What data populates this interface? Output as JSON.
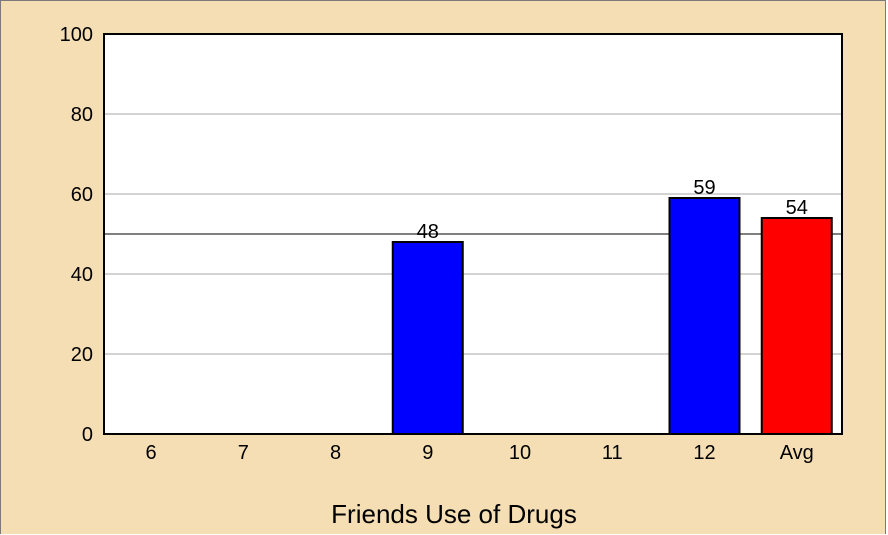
{
  "chart_data": {
    "type": "bar",
    "title": "",
    "xlabel": "Friends Use of Drugs",
    "ylabel": "",
    "categories": [
      "6",
      "7",
      "8",
      "9",
      "10",
      "11",
      "12",
      "Avg"
    ],
    "values": [
      null,
      null,
      null,
      48,
      null,
      null,
      59,
      54
    ],
    "data_labels": [
      "",
      "",
      "",
      "48",
      "",
      "",
      "59",
      "54"
    ],
    "y_ticks": [
      "0",
      "20",
      "40",
      "60",
      "80",
      "100"
    ],
    "ylim": [
      0,
      100
    ],
    "reference_line": 50,
    "grid": true,
    "colors": {
      "background": "#f5deb3",
      "plot_area": "#ffffff",
      "bar": "#0000ff",
      "avg_bar": "#ff0000",
      "gridline": "#d3d3d3",
      "reference_line": "#808080"
    }
  }
}
